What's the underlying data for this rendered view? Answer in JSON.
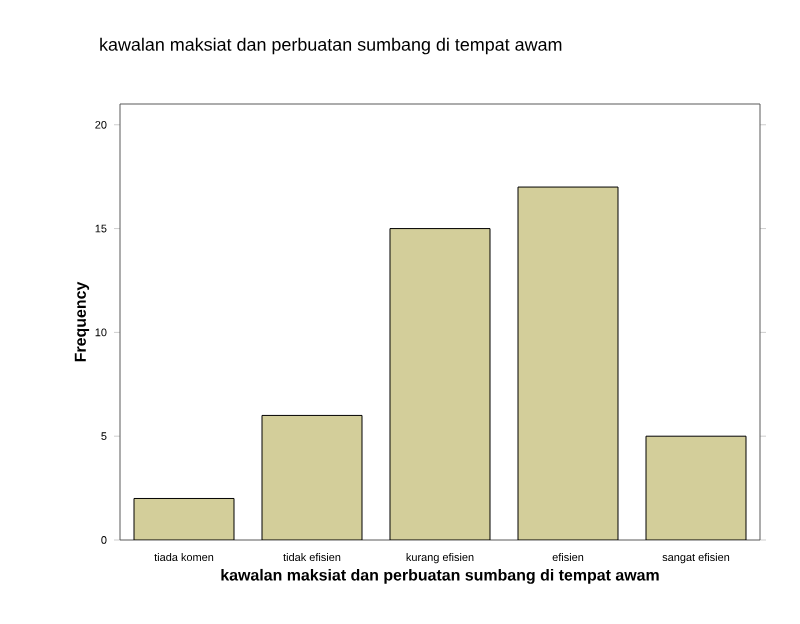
{
  "chart_data": {
    "type": "bar",
    "title": "kawalan maksiat dan perbuatan sumbang di tempat awam",
    "xlabel": "kawalan maksiat dan perbuatan sumbang di tempat awam",
    "ylabel": "Frequency",
    "categories": [
      "tiada komen",
      "tidak efisien",
      "kurang efisien",
      "efisien",
      "sangat efisien"
    ],
    "values": [
      2,
      6,
      15,
      17,
      5
    ],
    "color": "#d3ce9a",
    "ylim": [
      0,
      21
    ],
    "yticks": [
      0,
      5,
      10,
      15,
      20
    ],
    "grid": false
  }
}
